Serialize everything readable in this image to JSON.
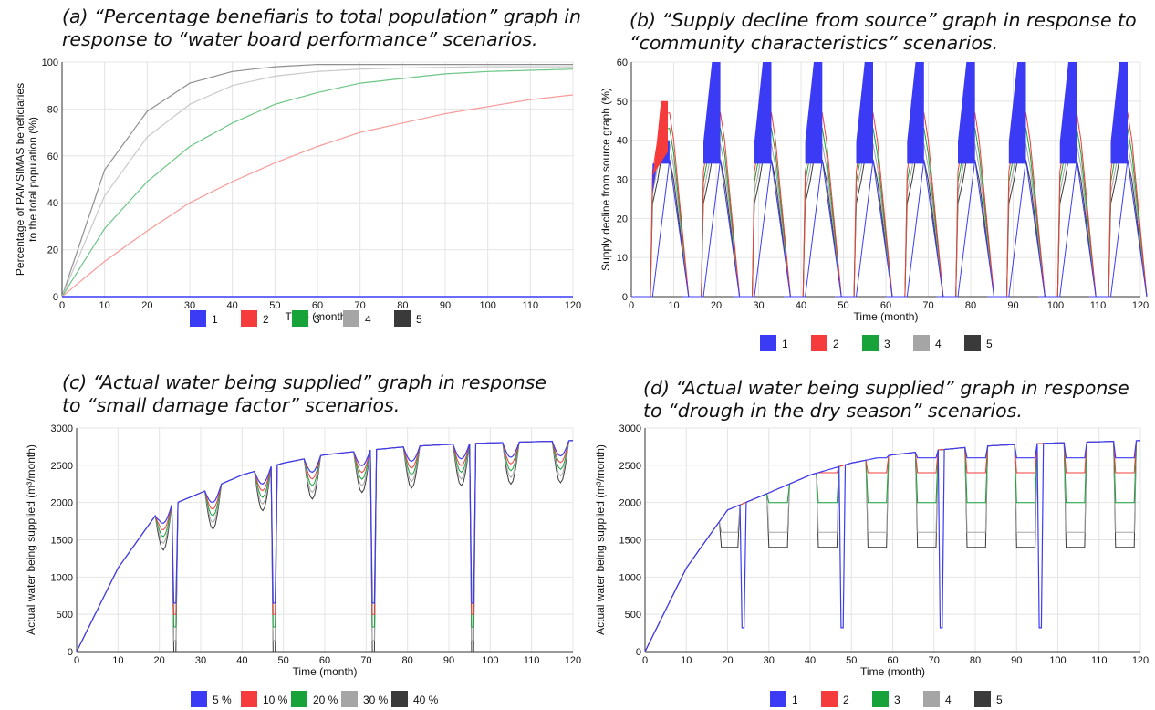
{
  "captions": {
    "a": [
      "(a) “Percentage benefiaris to total population” graph in",
      "response to “water board performance” scenarios."
    ],
    "b": [
      "(b) “Supply decline from source” graph in response to",
      "“community characteristics” scenarios."
    ],
    "c": [
      "(c) “Actual water being supplied” graph in response",
      "to “small damage factor” scenarios."
    ],
    "d": [
      "(d) “Actual water being supplied” graph in response",
      "to “drough in the dry season” scenarios."
    ]
  },
  "colors": {
    "s1": "#3b3bf5",
    "s2": "#f53b3b",
    "s3": "#18a23a",
    "s4": "#a5a5a5",
    "s5": "#3a3a3a"
  },
  "chart_data": [
    {
      "id": "a",
      "type": "line",
      "xlabel": "Time (month)",
      "ylabel": [
        "Percentage of PAMSIMAS beneficiaries",
        "to the total population (%)"
      ],
      "xlim": [
        0,
        120
      ],
      "ylim": [
        0,
        100
      ],
      "xticks": [
        0,
        10,
        20,
        30,
        40,
        50,
        60,
        70,
        80,
        90,
        100,
        110,
        120
      ],
      "yticks": [
        0,
        20,
        40,
        60,
        80,
        100
      ],
      "grid": true,
      "legend": [
        "1",
        "2",
        "3",
        "4",
        "5"
      ],
      "legend_position": "bottom-center",
      "series": [
        {
          "name": "1",
          "x": [
            0,
            120
          ],
          "y": [
            0,
            0
          ]
        },
        {
          "name": "2",
          "x": [
            0,
            10,
            20,
            30,
            40,
            50,
            60,
            70,
            80,
            90,
            100,
            110,
            120
          ],
          "y": [
            0,
            15,
            28,
            40,
            49,
            57,
            64,
            70,
            74,
            78,
            81,
            84,
            86
          ]
        },
        {
          "name": "3",
          "x": [
            0,
            10,
            20,
            30,
            40,
            50,
            60,
            70,
            80,
            90,
            100,
            110,
            120
          ],
          "y": [
            0,
            29,
            49,
            64,
            74,
            82,
            87,
            91,
            93,
            95,
            96,
            96.5,
            97
          ]
        },
        {
          "name": "4",
          "x": [
            0,
            10,
            20,
            30,
            40,
            50,
            60,
            70,
            80,
            90,
            100,
            110,
            120
          ],
          "y": [
            0,
            43,
            68,
            82,
            90,
            94,
            96,
            97,
            97.5,
            97.8,
            98,
            98,
            98
          ]
        },
        {
          "name": "5",
          "x": [
            0,
            10,
            20,
            30,
            40,
            50,
            60,
            70,
            80,
            90,
            100,
            110,
            120
          ],
          "y": [
            0,
            54,
            79,
            91,
            96,
            98,
            99,
            99,
            99,
            99,
            99,
            99,
            99
          ]
        }
      ]
    },
    {
      "id": "b",
      "type": "line",
      "xlabel": "Time (month)",
      "ylabel": [
        "Supply decline from source graph (%)"
      ],
      "xlim": [
        0,
        120
      ],
      "ylim": [
        0,
        60
      ],
      "xticks": [
        0,
        10,
        20,
        30,
        40,
        50,
        60,
        70,
        80,
        90,
        100,
        110,
        120
      ],
      "yticks": [
        0,
        10,
        20,
        30,
        40,
        50,
        60
      ],
      "grid": true,
      "legend": [
        "1",
        "2",
        "3",
        "4",
        "5"
      ],
      "legend_position": "bottom-center",
      "period": 12,
      "cycle_shape": {
        "rise_start": 0,
        "plateau_start": 5,
        "plateau_end": 9,
        "fall_end": 13
      },
      "series": [
        {
          "name": "1",
          "peak": 60,
          "band": [
            34,
            60
          ],
          "first_band": [
            34,
            40
          ]
        },
        {
          "name": "2",
          "peak": 47,
          "first_band": [
            31,
            50
          ]
        },
        {
          "name": "3",
          "peak": 43
        },
        {
          "name": "4",
          "peak": 39
        },
        {
          "name": "5",
          "peak": 35
        }
      ]
    },
    {
      "id": "c",
      "type": "line",
      "xlabel": "Time (month)",
      "ylabel": [
        "Actual water being supplied (m³/month)"
      ],
      "xlim": [
        0,
        120
      ],
      "ylim": [
        0,
        3000
      ],
      "xticks": [
        0,
        10,
        20,
        30,
        40,
        50,
        60,
        70,
        80,
        90,
        100,
        110,
        120
      ],
      "yticks": [
        0,
        500,
        1000,
        1500,
        2000,
        2500,
        3000
      ],
      "ytick_labels": [
        "0",
        "500",
        "1000",
        "1500",
        "2000",
        "2500",
        "3000"
      ],
      "grid": true,
      "legend": [
        "5 %",
        "10 %",
        "20 %",
        "30 %",
        "40 %"
      ],
      "legend_position": "bottom-center",
      "envelope": {
        "x": [
          0,
          10,
          20,
          30,
          40,
          50,
          60,
          70,
          80,
          90,
          100,
          110,
          120
        ],
        "y": [
          0,
          1120,
          1900,
          2130,
          2370,
          2530,
          2640,
          2700,
          2750,
          2780,
          2800,
          2815,
          2830
        ]
      },
      "drop_months": [
        24,
        48,
        72,
        96
      ],
      "drop_levels": [
        650,
        500,
        330,
        150,
        0
      ]
    },
    {
      "id": "d",
      "type": "line",
      "xlabel": "Time (month)",
      "ylabel": [
        "Actual water being supplied (m³/month)"
      ],
      "xlim": [
        0,
        120
      ],
      "ylim": [
        0,
        3000
      ],
      "xticks": [
        0,
        10,
        20,
        30,
        40,
        50,
        60,
        70,
        80,
        90,
        100,
        110,
        120
      ],
      "yticks": [
        0,
        500,
        1000,
        1500,
        2000,
        2500,
        3000
      ],
      "ytick_labels": [
        "0",
        "500",
        "1000",
        "1500",
        "2000",
        "2500",
        "3000"
      ],
      "grid": true,
      "legend": [
        "1",
        "2",
        "3",
        "4",
        "5"
      ],
      "legend_position": "bottom-center",
      "envelope": {
        "x": [
          0,
          10,
          20,
          30,
          40,
          50,
          60,
          70,
          80,
          90,
          100,
          110,
          120
        ],
        "y": [
          0,
          1120,
          1900,
          2130,
          2370,
          2530,
          2640,
          2700,
          2750,
          2780,
          2800,
          2815,
          2830
        ]
      },
      "drop_months": [
        24,
        48,
        72,
        96
      ],
      "drop_level": 320,
      "dry_season_levels": [
        2600,
        2400,
        2000,
        1600,
        1400
      ]
    }
  ]
}
